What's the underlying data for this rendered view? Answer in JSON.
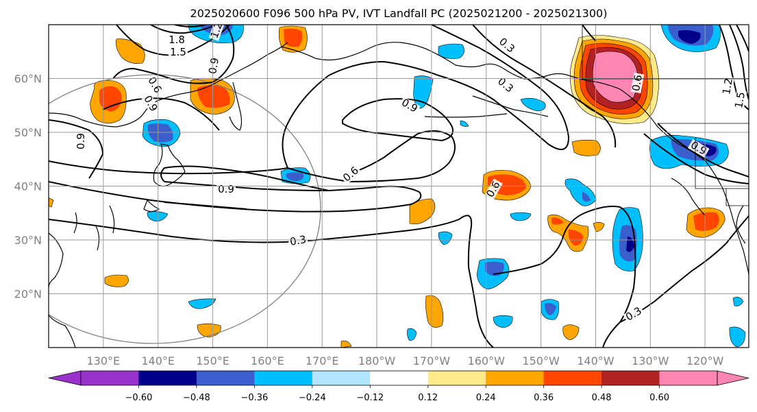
{
  "chart_data": {
    "type": "map",
    "title": "2025020600 F096 500 hPa PV, IVT Landfall PC (2025021200 - 2025021300)",
    "lon_ticks": [
      "130°E",
      "140°E",
      "150°E",
      "160°E",
      "170°E",
      "180°W",
      "170°W",
      "160°W",
      "150°W",
      "140°W",
      "130°W",
      "120°W"
    ],
    "lat_ticks": [
      "60°N",
      "50°N",
      "40°N",
      "30°N",
      "20°N"
    ],
    "lon_range_east": [
      120,
      248
    ],
    "lat_range": [
      10,
      70
    ],
    "grid": true,
    "colorbar": {
      "ticks": [
        "−0.60",
        "−0.48",
        "−0.36",
        "−0.24",
        "−0.12",
        "0.12",
        "0.24",
        "0.36",
        "0.48",
        "0.60"
      ],
      "colors": [
        "#9932cc",
        "#00008b",
        "#3a5fcd",
        "#00bfff",
        "#b2e5ff",
        "#ffffff",
        "#ffe98a",
        "#ffa500",
        "#ff4500",
        "#b22222",
        "#ff85b2"
      ],
      "extend": "both"
    },
    "contour_labels": [
      "1.8",
      "1.5",
      "1.2",
      "0.9",
      "0.6",
      "0.3"
    ],
    "pv_contour_levels": [
      0.3,
      0.6,
      0.9,
      1.2,
      1.5,
      1.8
    ]
  },
  "contour_text": [
    {
      "t": "1.8"
    },
    {
      "t": "1.5"
    },
    {
      "t": "1.2"
    },
    {
      "t": "0.9"
    },
    {
      "t": "0.6"
    },
    {
      "t": "0.9"
    },
    {
      "t": "0.9"
    },
    {
      "t": "0.6"
    },
    {
      "t": "0.9"
    },
    {
      "t": "0.3"
    },
    {
      "t": "0.3"
    },
    {
      "t": "0.6"
    },
    {
      "t": "0.9"
    },
    {
      "t": "0.3"
    },
    {
      "t": "0.3"
    },
    {
      "t": "0.9"
    },
    {
      "t": "1.2"
    },
    {
      "t": "1.5"
    },
    {
      "t": "0.6"
    }
  ]
}
